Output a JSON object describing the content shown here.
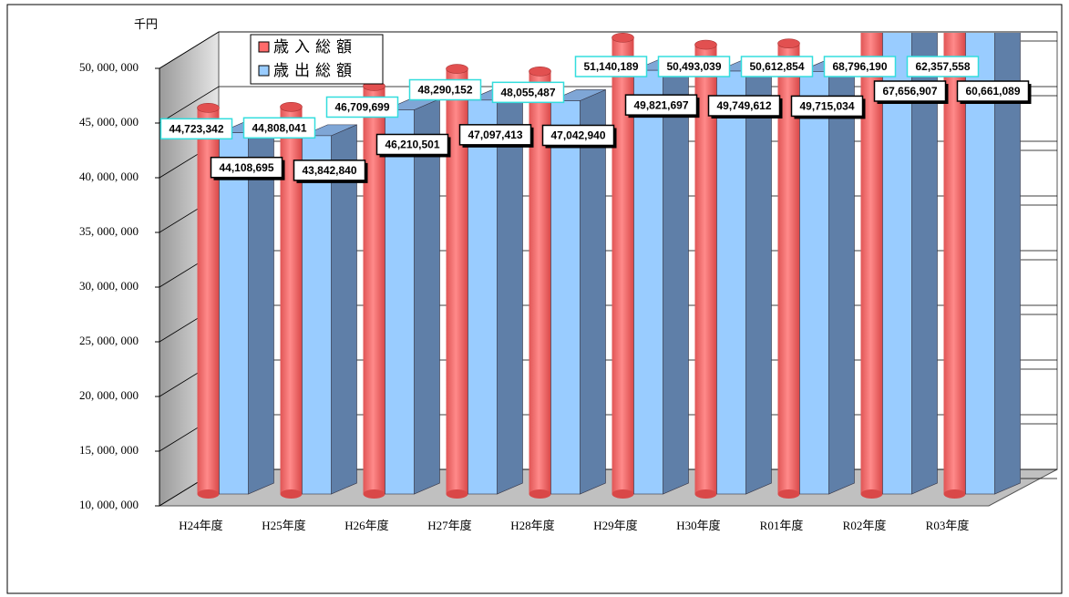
{
  "chart_data": {
    "type": "bar3d",
    "unit_label": "千円",
    "categories": [
      "H24年度",
      "H25年度",
      "H26年度",
      "H27年度",
      "H28年度",
      "H29年度",
      "H30年度",
      "R01年度",
      "R02年度",
      "R03年度"
    ],
    "series": [
      {
        "name": "歳入総額",
        "color": "#ff6b6b",
        "values": [
          44723342,
          44808041,
          46709699,
          48290152,
          48055487,
          51140189,
          50493039,
          50612854,
          68796190,
          62357558
        ],
        "value_labels": [
          "44,723,342",
          "44,808,041",
          "46,709,699",
          "48,290,152",
          "48,055,487",
          "51,140,189",
          "50,493,039",
          "50,612,854",
          "68,796,190",
          "62,357,558"
        ]
      },
      {
        "name": "歳出総額",
        "color": "#99ccff",
        "values": [
          44108695,
          43842840,
          46210501,
          47097413,
          47042940,
          49821697,
          49749612,
          49715034,
          67656907,
          60661089
        ],
        "value_labels": [
          "44,108,695",
          "43,842,840",
          "46,210,501",
          "47,097,413",
          "47,042,940",
          "49,821,697",
          "49,749,612",
          "49,715,034",
          "67,656,907",
          "60,661,089"
        ]
      }
    ],
    "ylim": [
      10000000,
      50000000
    ],
    "yticks": [
      {
        "value": 10000000,
        "label": "10, 000, 000"
      },
      {
        "value": 15000000,
        "label": "15, 000, 000"
      },
      {
        "value": 20000000,
        "label": "20, 000, 000"
      },
      {
        "value": 25000000,
        "label": "25, 000, 000"
      },
      {
        "value": 30000000,
        "label": "30, 000, 000"
      },
      {
        "value": 35000000,
        "label": "35, 000, 000"
      },
      {
        "value": 40000000,
        "label": "40, 000, 000"
      },
      {
        "value": 45000000,
        "label": "45, 000, 000"
      },
      {
        "value": 50000000,
        "label": "50, 000, 000"
      }
    ],
    "grid": true,
    "legend": "top-left"
  }
}
